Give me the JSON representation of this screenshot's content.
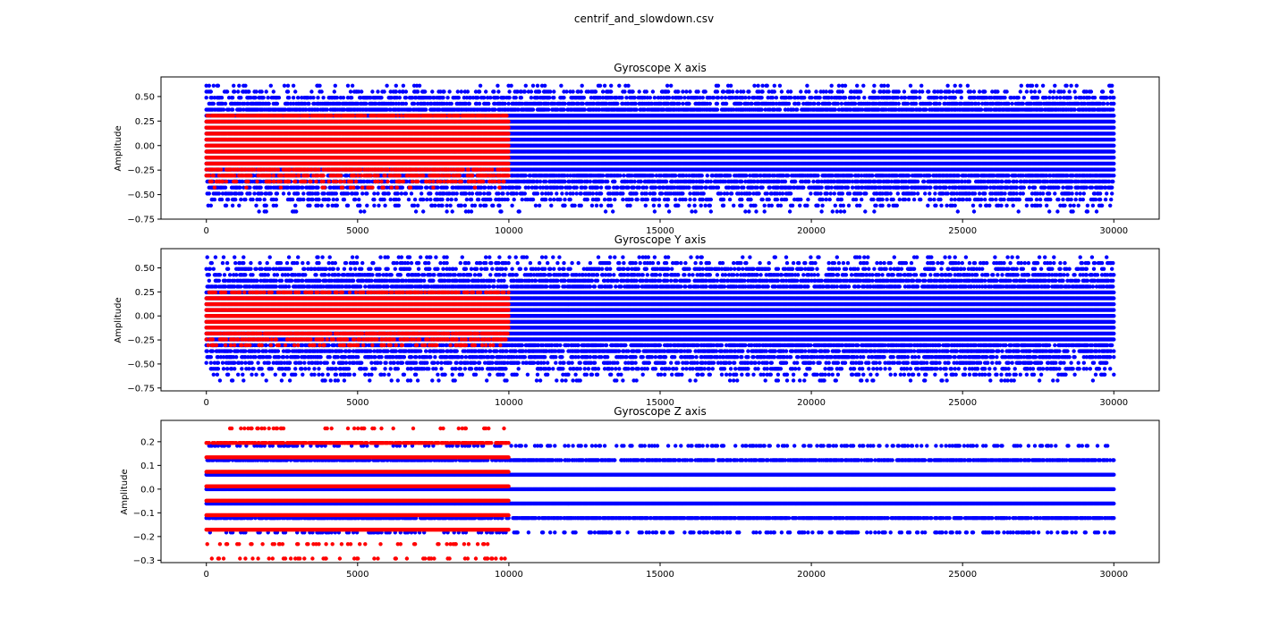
{
  "figure": {
    "suptitle": "centrif_and_slowdown.csv"
  },
  "colors": {
    "series_a": "#0000ff",
    "series_b": "#ff0000",
    "axes": "#000000",
    "background": "#ffffff"
  },
  "chart_data": [
    {
      "type": "scatter",
      "title": "Gyroscope X axis",
      "xlabel": "",
      "ylabel": "Amplitude",
      "xlim": [
        -1500,
        31500
      ],
      "ylim": [
        -0.75,
        0.7
      ],
      "xticks": [
        0,
        5000,
        10000,
        15000,
        20000,
        25000,
        30000
      ],
      "yticks": [
        -0.75,
        -0.5,
        -0.25,
        0.0,
        0.25,
        0.5
      ],
      "ytick_labels": [
        "−0.75",
        "−0.50",
        "−0.25",
        "0.00",
        "0.25",
        "0.50"
      ],
      "grid": false,
      "series": [
        {
          "x_range": [
            0,
            30000
          ],
          "level_step": 0.0611,
          "y_core": [
            -0.27,
            0.35
          ],
          "y_extreme": [
            -0.7,
            0.64
          ],
          "color": "#0000ff"
        },
        {
          "x_range": [
            0,
            10000
          ],
          "level_step": 0.0611,
          "y_core": [
            -0.2,
            0.3
          ],
          "y_extreme": [
            -0.45,
            0.35
          ],
          "color": "#ff0000"
        }
      ]
    },
    {
      "type": "scatter",
      "title": "Gyroscope Y axis",
      "xlabel": "",
      "ylabel": "Amplitude",
      "xlim": [
        -1500,
        31500
      ],
      "ylim": [
        -0.78,
        0.7
      ],
      "xticks": [
        0,
        5000,
        10000,
        15000,
        20000,
        25000,
        30000
      ],
      "yticks": [
        -0.75,
        -0.5,
        -0.25,
        0.0,
        0.25,
        0.5
      ],
      "ytick_labels": [
        "−0.75",
        "−0.50",
        "−0.25",
        "0.00",
        "0.25",
        "0.50"
      ],
      "grid": false,
      "series": [
        {
          "x_range": [
            0,
            30000
          ],
          "level_step": 0.0611,
          "y_core": [
            -0.25,
            0.25
          ],
          "y_extreme": [
            -0.73,
            0.66
          ],
          "color": "#0000ff"
        },
        {
          "x_range": [
            0,
            10000
          ],
          "level_step": 0.0611,
          "y_core": [
            -0.18,
            0.2
          ],
          "y_extreme": [
            -0.35,
            0.3
          ],
          "color": "#ff0000"
        }
      ]
    },
    {
      "type": "scatter",
      "title": "Gyroscope Z axis",
      "xlabel": "",
      "ylabel": "Amplitude",
      "xlim": [
        -1500,
        31500
      ],
      "ylim": [
        -0.31,
        0.29
      ],
      "xticks": [
        0,
        5000,
        10000,
        15000,
        20000,
        25000,
        30000
      ],
      "yticks": [
        -0.3,
        -0.2,
        -0.1,
        0.0,
        0.1,
        0.2
      ],
      "ytick_labels": [
        "−0.3",
        "−0.2",
        "−0.1",
        "0.0",
        "0.1",
        "0.2"
      ],
      "grid": false,
      "series": [
        {
          "x_range": [
            0,
            30000
          ],
          "levels": [
            -0.183,
            -0.122,
            -0.061,
            0.0,
            0.061,
            0.122,
            0.183
          ],
          "color": "#0000ff"
        },
        {
          "x_range": [
            0,
            10000
          ],
          "levels": [
            -0.293,
            -0.232,
            -0.171,
            -0.11,
            -0.049,
            0.012,
            0.073,
            0.134,
            0.195,
            0.256
          ],
          "color": "#ff0000"
        }
      ]
    }
  ]
}
